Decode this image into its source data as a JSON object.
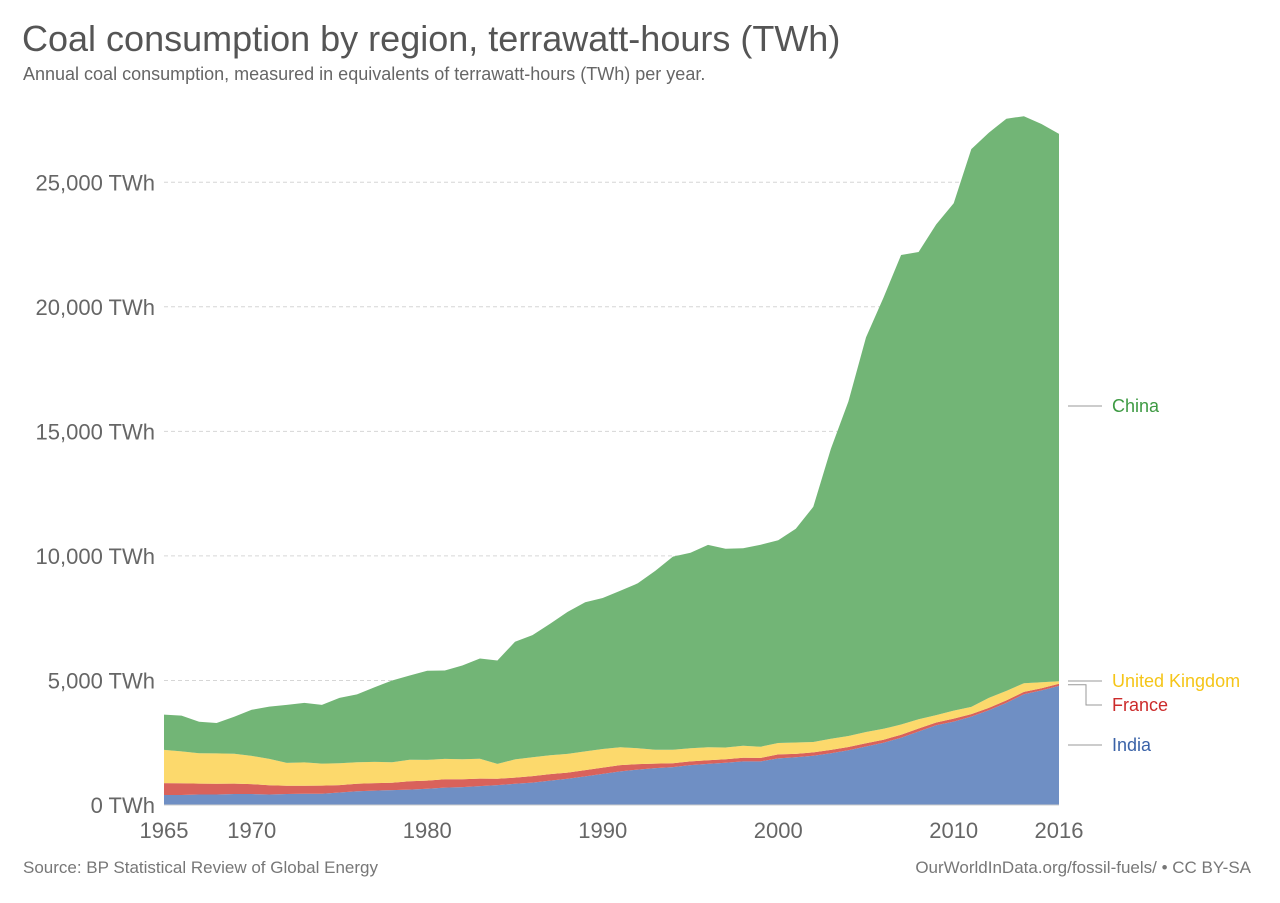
{
  "header": {
    "title": "Coal consumption by region, terrawatt-hours (TWh)",
    "subtitle": "Annual coal consumption, measured in equivalents of terrawatt-hours (TWh) per year."
  },
  "footer": {
    "source": "Source: BP Statistical Review of Global Energy",
    "license": "OurWorldInData.org/fossil-fuels/ • CC BY-SA"
  },
  "chart_data": {
    "type": "area",
    "stacked": true,
    "grid": "horizontal dashed",
    "legend": "right, inline labels",
    "xlim": [
      1965,
      2016
    ],
    "ylim": [
      0,
      27700
    ],
    "x_ticks": [
      "1965",
      "1970",
      "1980",
      "1990",
      "2000",
      "2010",
      "2016"
    ],
    "y_ticks": [
      "0 TWh",
      "5,000 TWh",
      "10,000 TWh",
      "15,000 TWh",
      "20,000 TWh",
      "25,000 TWh"
    ],
    "x": [
      1965,
      1966,
      1967,
      1968,
      1969,
      1970,
      1971,
      1972,
      1973,
      1974,
      1975,
      1976,
      1977,
      1978,
      1979,
      1980,
      1981,
      1982,
      1983,
      1984,
      1985,
      1986,
      1987,
      1988,
      1989,
      1990,
      1991,
      1992,
      1993,
      1994,
      1995,
      1996,
      1997,
      1998,
      1999,
      2000,
      2001,
      2002,
      2003,
      2004,
      2005,
      2006,
      2007,
      2008,
      2009,
      2010,
      2011,
      2012,
      2013,
      2014,
      2015,
      2016
    ],
    "series": [
      {
        "name": "India",
        "color": "#6f8fc4",
        "values": [
          400,
          400,
          420,
          420,
          440,
          440,
          420,
          440,
          450,
          450,
          500,
          550,
          580,
          600,
          620,
          650,
          700,
          720,
          760,
          800,
          850,
          900,
          980,
          1050,
          1150,
          1250,
          1350,
          1420,
          1480,
          1520,
          1600,
          1650,
          1700,
          1750,
          1750,
          1870,
          1920,
          1980,
          2080,
          2200,
          2350,
          2500,
          2700,
          2950,
          3200,
          3350,
          3550,
          3800,
          4100,
          4450,
          4600,
          4780
        ]
      },
      {
        "name": "France",
        "color": "#d9625b",
        "values": [
          480,
          470,
          440,
          430,
          420,
          400,
          370,
          330,
          320,
          330,
          300,
          300,
          300,
          290,
          330,
          330,
          330,
          310,
          300,
          250,
          250,
          260,
          260,
          250,
          250,
          250,
          250,
          220,
          180,
          160,
          150,
          150,
          140,
          150,
          140,
          160,
          130,
          130,
          130,
          130,
          130,
          120,
          120,
          120,
          110,
          120,
          100,
          100,
          100,
          90,
          90,
          90
        ]
      },
      {
        "name": "United Kingdom",
        "color": "#fcd96c",
        "values": [
          1330,
          1280,
          1220,
          1220,
          1200,
          1130,
          1060,
          920,
          940,
          880,
          880,
          870,
          850,
          830,
          870,
          830,
          820,
          810,
          800,
          600,
          730,
          760,
          760,
          750,
          750,
          750,
          720,
          640,
          560,
          540,
          530,
          520,
          470,
          480,
          450,
          460,
          460,
          420,
          450,
          440,
          450,
          440,
          410,
          370,
          300,
          320,
          290,
          400,
          380,
          350,
          240,
          100
        ]
      },
      {
        "name": "China",
        "color": "#72b576",
        "values": [
          1420,
          1440,
          1260,
          1220,
          1480,
          1850,
          2100,
          2330,
          2390,
          2360,
          2620,
          2720,
          3000,
          3280,
          3380,
          3580,
          3550,
          3760,
          4020,
          4150,
          4720,
          4900,
          5280,
          5700,
          5990,
          6060,
          6280,
          6620,
          7180,
          7750,
          7850,
          8120,
          7980,
          7930,
          8110,
          8140,
          8580,
          9440,
          11640,
          13430,
          15840,
          17310,
          18850,
          18760,
          19700,
          20370,
          22390,
          22690,
          22970,
          22760,
          22410,
          21970
        ]
      }
    ],
    "labels": [
      "China",
      "United Kingdom",
      "France",
      "India"
    ]
  }
}
